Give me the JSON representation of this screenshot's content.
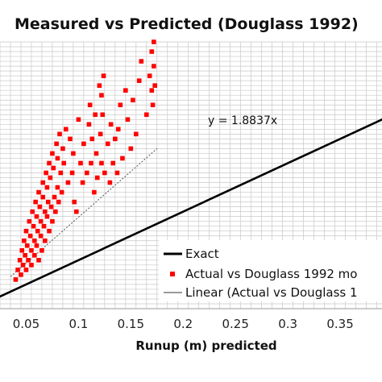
{
  "chart_data": {
    "type": "scatter",
    "title": "Measured vs Predicted (Douglass 1992)",
    "xlabel": "Runup (m) predicted",
    "ylabel": "",
    "xlim": [
      0.025,
      0.39
    ],
    "ylim": [
      0.0,
      0.55
    ],
    "x_ticks": [
      "0.05",
      "0.1",
      "0.15",
      "0.2",
      "0.25",
      "0.3",
      "0.35"
    ],
    "grid": true,
    "legend_position": "bottom-right",
    "legend": [
      {
        "label": "Exact",
        "style": "thick-line",
        "color": "#000000"
      },
      {
        "label": "Actual vs Douglass 1992 mo",
        "style": "marker",
        "color": "#ff0000"
      },
      {
        "label": "Linear (Actual vs Douglass 1",
        "style": "thin-line",
        "color": "#333333"
      }
    ],
    "trendline_label": "y = 1.8837x",
    "series": [
      {
        "name": "Exact",
        "kind": "line",
        "color": "#000000",
        "x": [
          0.0,
          0.4
        ],
        "y": [
          0.0,
          0.4
        ]
      },
      {
        "name": "Actual vs Douglass 1992 mo",
        "kind": "scatter",
        "color": "#ff0000",
        "x": [
          0.04,
          0.042,
          0.044,
          0.045,
          0.046,
          0.047,
          0.048,
          0.049,
          0.05,
          0.05,
          0.051,
          0.052,
          0.053,
          0.054,
          0.055,
          0.055,
          0.056,
          0.057,
          0.058,
          0.058,
          0.059,
          0.06,
          0.06,
          0.061,
          0.062,
          0.062,
          0.063,
          0.064,
          0.064,
          0.065,
          0.066,
          0.066,
          0.067,
          0.068,
          0.068,
          0.069,
          0.07,
          0.07,
          0.071,
          0.072,
          0.072,
          0.073,
          0.074,
          0.075,
          0.075,
          0.076,
          0.077,
          0.078,
          0.079,
          0.08,
          0.08,
          0.081,
          0.082,
          0.083,
          0.084,
          0.085,
          0.086,
          0.088,
          0.09,
          0.092,
          0.094,
          0.095,
          0.096,
          0.098,
          0.1,
          0.102,
          0.104,
          0.105,
          0.108,
          0.11,
          0.111,
          0.112,
          0.113,
          0.115,
          0.116,
          0.117,
          0.118,
          0.12,
          0.121,
          0.122,
          0.122,
          0.123,
          0.124,
          0.125,
          0.128,
          0.13,
          0.131,
          0.133,
          0.135,
          0.137,
          0.138,
          0.14,
          0.142,
          0.145,
          0.147,
          0.15,
          0.152,
          0.155,
          0.158,
          0.16,
          0.165,
          0.168,
          0.17,
          0.17,
          0.171,
          0.172,
          0.172,
          0.173
        ],
        "y": [
          0.06,
          0.08,
          0.1,
          0.07,
          0.12,
          0.09,
          0.14,
          0.11,
          0.08,
          0.16,
          0.13,
          0.1,
          0.18,
          0.15,
          0.09,
          0.12,
          0.2,
          0.17,
          0.11,
          0.14,
          0.22,
          0.19,
          0.13,
          0.16,
          0.1,
          0.24,
          0.21,
          0.15,
          0.18,
          0.12,
          0.26,
          0.23,
          0.17,
          0.2,
          0.14,
          0.28,
          0.25,
          0.19,
          0.22,
          0.16,
          0.3,
          0.27,
          0.21,
          0.18,
          0.32,
          0.29,
          0.23,
          0.2,
          0.34,
          0.31,
          0.25,
          0.22,
          0.36,
          0.28,
          0.24,
          0.33,
          0.3,
          0.37,
          0.26,
          0.35,
          0.28,
          0.32,
          0.22,
          0.2,
          0.39,
          0.3,
          0.26,
          0.34,
          0.28,
          0.38,
          0.42,
          0.3,
          0.35,
          0.24,
          0.4,
          0.32,
          0.27,
          0.46,
          0.36,
          0.44,
          0.3,
          0.4,
          0.48,
          0.28,
          0.34,
          0.26,
          0.38,
          0.3,
          0.35,
          0.28,
          0.37,
          0.42,
          0.31,
          0.45,
          0.39,
          0.33,
          0.43,
          0.36,
          0.47,
          0.51,
          0.4,
          0.48,
          0.53,
          0.45,
          0.42,
          0.55,
          0.5,
          0.46
        ]
      },
      {
        "name": "Linear (Actual vs Douglass 1",
        "kind": "line",
        "color": "#555555",
        "x": [
          0.035,
          0.175
        ],
        "y": [
          0.066,
          0.33
        ]
      }
    ]
  }
}
